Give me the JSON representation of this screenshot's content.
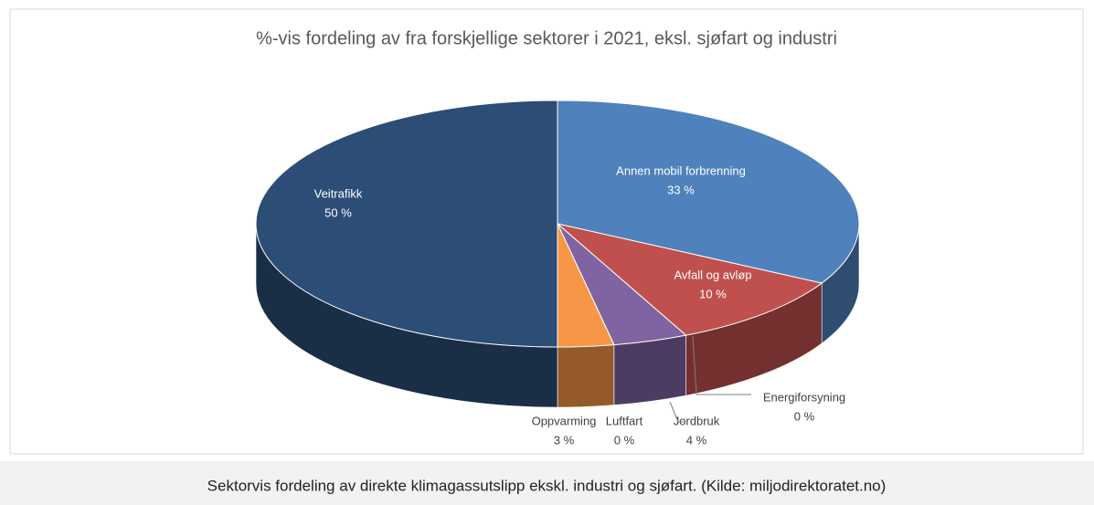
{
  "chart_data": {
    "type": "pie3d",
    "title": "%-vis fordeling av fra forskjellige sektorer i 2021, eksl. sjøfart og industri",
    "categories": [
      "Annen mobil forbrenning",
      "Avfall og avløp",
      "Energiforsyning",
      "Jordbruk",
      "Luftfart",
      "Oppvarming",
      "Veitrafikk"
    ],
    "values": [
      33,
      10,
      0,
      4,
      0,
      3,
      50
    ],
    "value_labels": [
      "33 %",
      "10 %",
      "0 %",
      "4 %",
      "0 %",
      "3 %",
      "50 %"
    ],
    "colors": [
      "#4f81bd",
      "#c0504d",
      "#9bbb59",
      "#8064a2",
      "#4bacc6",
      "#f79646",
      "#2c4d75"
    ]
  },
  "caption": "Sektorvis fordeling av direkte klimagassutslipp ekskl. industri og sjøfart. (Kilde: miljodirektoratet.no)"
}
